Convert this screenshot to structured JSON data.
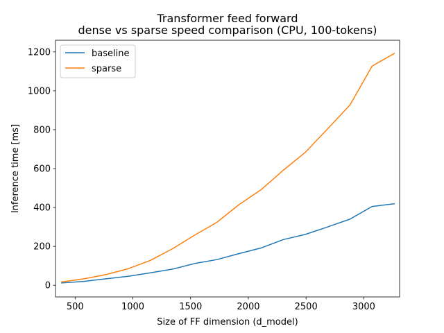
{
  "chart_data": {
    "type": "line",
    "title": "Transformer feed forward",
    "subtitle": "dense vs sparse speed comparison (CPU, 100-tokens)",
    "xlabel": "Size of FF dimension (d_model)",
    "ylabel": "Inference time [ms]",
    "xlim": [
      330,
      3310
    ],
    "ylim": [
      -60,
      1260
    ],
    "xticks": [
      500,
      1000,
      1500,
      2000,
      2500,
      3000
    ],
    "yticks": [
      0,
      200,
      400,
      600,
      800,
      1000,
      1200
    ],
    "grid": false,
    "legend_position": "top-left",
    "x": [
      384,
      576,
      768,
      960,
      1152,
      1344,
      1536,
      1728,
      1920,
      2112,
      2304,
      2496,
      2688,
      2880,
      3072,
      3264
    ],
    "series": [
      {
        "name": "baseline",
        "color": "#1f77b4",
        "values": [
          12,
          20,
          33,
          46,
          64,
          83,
          112,
          132,
          163,
          192,
          235,
          262,
          300,
          340,
          405,
          419
        ]
      },
      {
        "name": "sparse",
        "color": "#ff7f0e",
        "values": [
          17,
          33,
          55,
          85,
          128,
          188,
          258,
          324,
          415,
          492,
          592,
          685,
          805,
          927,
          1127,
          1192
        ]
      }
    ]
  }
}
